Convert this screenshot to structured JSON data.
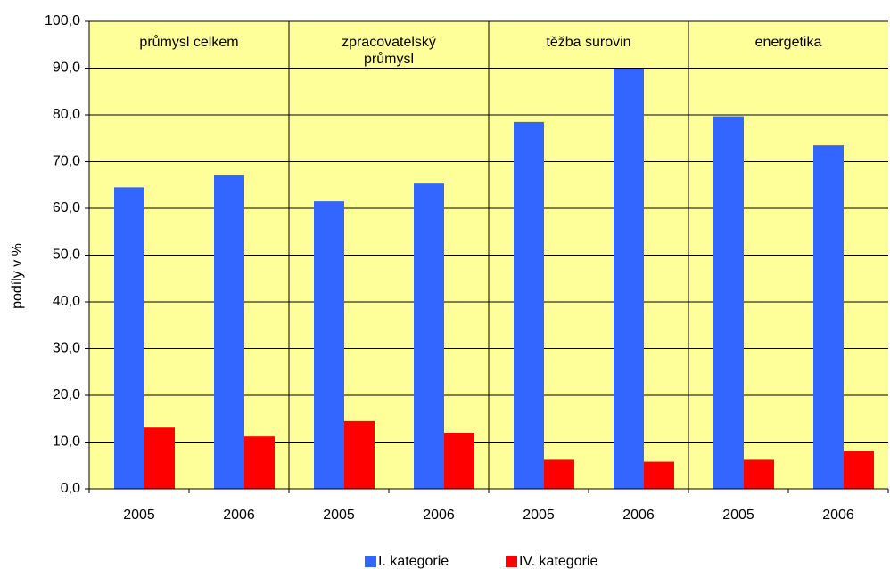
{
  "chart_data": {
    "type": "bar",
    "ylabel": "podíly v %",
    "groups": [
      "průmysl celkem",
      "zpracovatelský průmysl",
      "těžba surovin",
      "energetika"
    ],
    "categories": [
      "2005",
      "2006",
      "2005",
      "2006",
      "2005",
      "2006",
      "2005",
      "2006"
    ],
    "series": [
      {
        "name": "I. kategorie",
        "color": "#3366ff",
        "values": [
          64.5,
          67.1,
          61.5,
          65.3,
          78.5,
          89.8,
          79.7,
          73.5
        ]
      },
      {
        "name": "IV. kategorie",
        "color": "#ff0000",
        "values": [
          13.1,
          11.2,
          14.5,
          12.0,
          6.2,
          5.8,
          6.2,
          8.1
        ]
      }
    ],
    "ylim": [
      0,
      100
    ],
    "yticks": [
      {
        "value": 0,
        "label": "0,0"
      },
      {
        "value": 10,
        "label": "10,0"
      },
      {
        "value": 20,
        "label": "20,0"
      },
      {
        "value": 30,
        "label": "30,0"
      },
      {
        "value": 40,
        "label": "40,0"
      },
      {
        "value": 50,
        "label": "50,0"
      },
      {
        "value": 60,
        "label": "60,0"
      },
      {
        "value": 70,
        "label": "70,0"
      },
      {
        "value": 80,
        "label": "80,0"
      },
      {
        "value": 90,
        "label": "90,0"
      },
      {
        "value": 100,
        "label": "100,0"
      }
    ],
    "grid": true,
    "background": "#ffff99",
    "legend": "bottom"
  }
}
